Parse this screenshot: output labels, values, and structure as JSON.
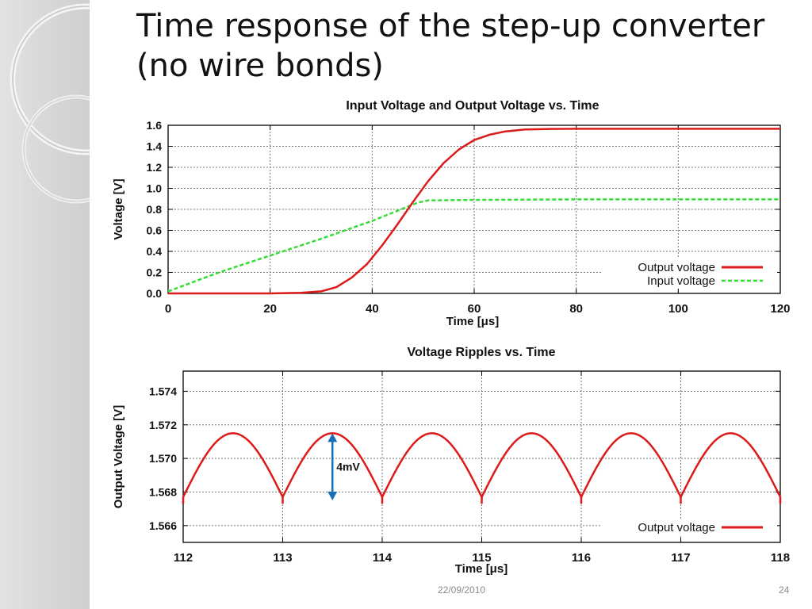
{
  "slide": {
    "title": "Time response of the step-up converter (no wire bonds)",
    "footer_date": "22/09/2010",
    "page_number": "24"
  },
  "colors": {
    "output": "#dd1a1a",
    "input": "#33dd33",
    "annotation": "#1a6fb5"
  },
  "chart_data": [
    {
      "type": "line",
      "title": "Input Voltage and Output Voltage vs. Time",
      "xlabel": "Time [μs]",
      "ylabel": "Voltage [V]",
      "xlim": [
        0,
        120
      ],
      "ylim": [
        0.0,
        1.6
      ],
      "xticks": [
        0,
        20,
        40,
        60,
        80,
        100,
        120
      ],
      "xtick_labels": [
        "0",
        "20",
        "40",
        "60",
        "80",
        "100",
        "120"
      ],
      "yticks": [
        0.0,
        0.2,
        0.4,
        0.6,
        0.8,
        1.0,
        1.2,
        1.4,
        1.6
      ],
      "ytick_labels": [
        "0.0",
        "0.2",
        "0.4",
        "0.6",
        "0.8",
        "1.0",
        "1.2",
        "1.4",
        "1.6"
      ],
      "grid": true,
      "legend_position": "bottom-right",
      "series": [
        {
          "name": "Output voltage",
          "style": "solid",
          "x": [
            0,
            20,
            26,
            30,
            33,
            36,
            39,
            42,
            45,
            48,
            51,
            54,
            57,
            60,
            63,
            66,
            70,
            75,
            80,
            90,
            100,
            110,
            120
          ],
          "y": [
            0.0,
            0.0,
            0.005,
            0.02,
            0.06,
            0.15,
            0.28,
            0.46,
            0.66,
            0.87,
            1.07,
            1.24,
            1.37,
            1.46,
            1.51,
            1.54,
            1.56,
            1.565,
            1.567,
            1.567,
            1.567,
            1.567,
            1.567
          ]
        },
        {
          "name": "Input voltage",
          "style": "dashed",
          "x": [
            0,
            10,
            20,
            30,
            40,
            49,
            51,
            60,
            80,
            100,
            120
          ],
          "y": [
            0.02,
            0.2,
            0.36,
            0.52,
            0.69,
            0.865,
            0.885,
            0.89,
            0.895,
            0.895,
            0.895
          ]
        }
      ]
    },
    {
      "type": "line",
      "title": "Voltage Ripples vs. Time",
      "xlabel": "Time [μs]",
      "ylabel": "Output Voltage [V]",
      "xlim": [
        112,
        118
      ],
      "ylim": [
        1.565,
        1.5752
      ],
      "xticks": [
        112,
        113,
        114,
        115,
        116,
        117,
        118
      ],
      "xtick_labels": [
        "112",
        "113",
        "114",
        "115",
        "116",
        "117",
        "118"
      ],
      "yticks": [
        1.566,
        1.568,
        1.57,
        1.572,
        1.574
      ],
      "ytick_labels": [
        "1.566",
        "1.568",
        "1.570",
        "1.572",
        "1.574"
      ],
      "grid": true,
      "legend_position": "bottom-right",
      "series": [
        {
          "name": "Output voltage",
          "style": "solid",
          "ripple_period": 1.0,
          "ripple_min": 1.5677,
          "ripple_max": 1.5715
        }
      ],
      "annotation": {
        "label": "4mV",
        "x": 113.5,
        "y_from": 1.5715,
        "y_to": 1.5675
      }
    }
  ]
}
